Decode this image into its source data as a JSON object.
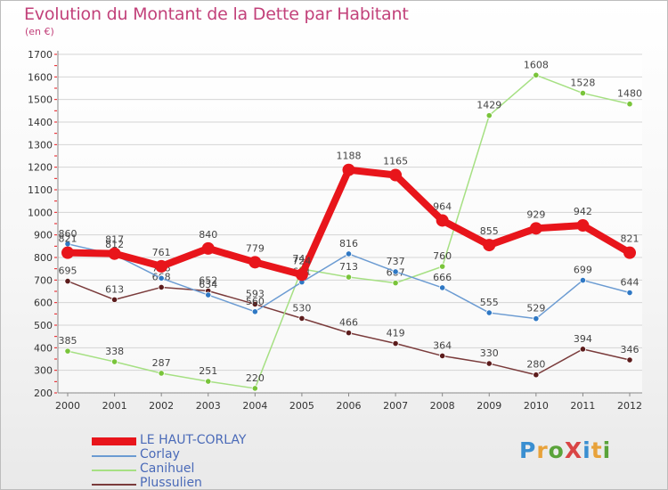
{
  "header": {
    "title": "Evolution du Montant de la Dette par Habitant",
    "unit": "(en €)"
  },
  "logo": {
    "text": "ProXiti",
    "colors": [
      "#3a8fd1",
      "#e8a23a",
      "#5aa33a",
      "#d94545",
      "#3a8fd1",
      "#e8a23a",
      "#5aa33a"
    ]
  },
  "chart_data": {
    "type": "line",
    "title": "Evolution du Montant de la Dette par Habitant",
    "ylabel": "(en €)",
    "xlabel": "",
    "x": [
      "2000",
      "2001",
      "2002",
      "2003",
      "2004",
      "2005",
      "2006",
      "2007",
      "2008",
      "2009",
      "2010",
      "2011",
      "2012"
    ],
    "ylim": [
      200,
      1700
    ],
    "yticks": [
      200,
      300,
      400,
      500,
      600,
      700,
      800,
      900,
      1000,
      1100,
      1200,
      1300,
      1400,
      1500,
      1600,
      1700
    ],
    "grid": "horizontal",
    "legend_position": "bottom-left",
    "series": [
      {
        "name": "LE HAUT-CORLAY",
        "color": "#e8151b",
        "marker": "#e8151b",
        "emphasis": true,
        "values": [
          821,
          817,
          761,
          840,
          779,
          724,
          1188,
          1165,
          964,
          855,
          929,
          942,
          821
        ]
      },
      {
        "name": "Corlay",
        "color": "#6b9bd2",
        "marker": "#2f78c4",
        "emphasis": false,
        "values": [
          860,
          812,
          708,
          634,
          560,
          691,
          816,
          737,
          666,
          555,
          529,
          699,
          644
        ]
      },
      {
        "name": "Canihuel",
        "color": "#a6e083",
        "marker": "#79c43a",
        "emphasis": false,
        "values": [
          385,
          338,
          287,
          251,
          220,
          749,
          713,
          687,
          760,
          1429,
          1608,
          1528,
          1480
        ]
      },
      {
        "name": "Plussulien",
        "color": "#7a3b3b",
        "marker": "#5c1c1c",
        "emphasis": false,
        "values": [
          695,
          613,
          668,
          652,
          593,
          530,
          466,
          419,
          364,
          330,
          280,
          394,
          346
        ]
      }
    ]
  }
}
